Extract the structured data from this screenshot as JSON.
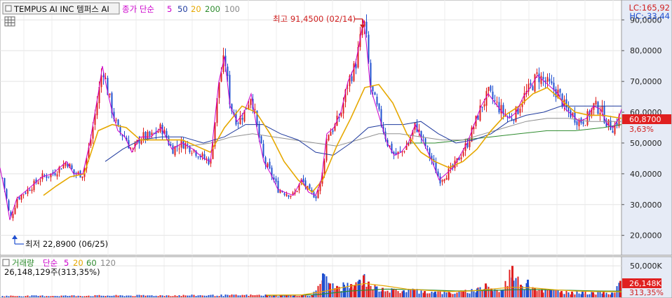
{
  "header": {
    "ticker": "TEMPUS AI INC  템퍼스 AI",
    "ma_prefix": "종가 단순",
    "ma_periods": [
      "5",
      "50",
      "20",
      "200",
      "100"
    ],
    "ma_colors": [
      "#cc00cc",
      "#1f3a9e",
      "#e6a800",
      "#2e8b2e",
      "#888888"
    ],
    "lc": "LC:165,92",
    "hc": "HC:-33,44"
  },
  "annotations": {
    "high": "최고 91,4500 (02/14)",
    "low": "최저 22,8900 (06/25)"
  },
  "price_badge": {
    "price": "60,8700",
    "change": "3,63%"
  },
  "volume_header": {
    "title": "거래량",
    "ma_prefix": "단순",
    "ma_periods": [
      "5",
      "20",
      "60",
      "120"
    ],
    "ma_colors": [
      "#cc00cc",
      "#e6a800",
      "#2e8b2e",
      "#888888"
    ],
    "current": "26,148,129주(313,35%)"
  },
  "volume_badge": {
    "value": "26,148K",
    "pct": "313,35%"
  },
  "colors": {
    "up": "#e02020",
    "down": "#2050d0"
  },
  "chart_data": {
    "type": "candlestick",
    "y_ticks": [
      "90,0000",
      "80,0000",
      "70,0000",
      "60,0000",
      "50,0000",
      "40,0000",
      "30,0000",
      "20,0000"
    ],
    "y_tick_values": [
      90,
      80,
      70,
      60,
      50,
      40,
      30,
      20
    ],
    "ylim": [
      14,
      96
    ],
    "volume_tick": "50,000K",
    "volume_tick_value": 50000,
    "volume_ylim": [
      0,
      58000
    ],
    "close_path": [
      [
        0,
        42
      ],
      [
        8,
        33
      ],
      [
        14,
        25
      ],
      [
        24,
        32
      ],
      [
        40,
        35
      ],
      [
        60,
        39
      ],
      [
        75,
        40
      ],
      [
        85,
        42
      ],
      [
        95,
        44
      ],
      [
        105,
        40
      ],
      [
        118,
        40
      ],
      [
        128,
        50
      ],
      [
        140,
        66
      ],
      [
        146,
        75
      ],
      [
        152,
        68
      ],
      [
        160,
        60
      ],
      [
        168,
        54
      ],
      [
        178,
        52
      ],
      [
        188,
        47
      ],
      [
        200,
        52
      ],
      [
        215,
        52
      ],
      [
        230,
        55
      ],
      [
        245,
        48
      ],
      [
        260,
        50
      ],
      [
        275,
        48
      ],
      [
        290,
        45
      ],
      [
        300,
        44
      ],
      [
        305,
        55
      ],
      [
        312,
        70
      ],
      [
        320,
        78
      ],
      [
        328,
        62
      ],
      [
        338,
        57
      ],
      [
        348,
        60
      ],
      [
        358,
        66
      ],
      [
        366,
        55
      ],
      [
        376,
        44
      ],
      [
        386,
        40
      ],
      [
        396,
        35
      ],
      [
        406,
        34
      ],
      [
        418,
        33
      ],
      [
        430,
        38
      ],
      [
        440,
        34
      ],
      [
        450,
        33
      ],
      [
        458,
        38
      ],
      [
        466,
        53
      ],
      [
        476,
        55
      ],
      [
        486,
        60
      ],
      [
        496,
        70
      ],
      [
        506,
        75
      ],
      [
        512,
        82
      ],
      [
        518,
        90
      ],
      [
        522,
        83
      ],
      [
        528,
        68
      ],
      [
        536,
        62
      ],
      [
        544,
        56
      ],
      [
        552,
        50
      ],
      [
        562,
        46
      ],
      [
        572,
        47
      ],
      [
        582,
        50
      ],
      [
        592,
        56
      ],
      [
        600,
        52
      ],
      [
        608,
        48
      ],
      [
        616,
        44
      ],
      [
        626,
        38
      ],
      [
        636,
        40
      ],
      [
        646,
        42
      ],
      [
        656,
        46
      ],
      [
        666,
        50
      ],
      [
        676,
        56
      ],
      [
        686,
        62
      ],
      [
        696,
        66
      ],
      [
        706,
        63
      ],
      [
        716,
        60
      ],
      [
        726,
        58
      ],
      [
        736,
        60
      ],
      [
        746,
        65
      ],
      [
        756,
        68
      ],
      [
        766,
        72
      ],
      [
        776,
        70
      ],
      [
        786,
        68
      ],
      [
        796,
        66
      ],
      [
        806,
        61
      ],
      [
        816,
        59
      ],
      [
        826,
        57
      ],
      [
        836,
        58
      ],
      [
        846,
        62
      ],
      [
        856,
        61
      ],
      [
        866,
        56
      ],
      [
        874,
        55
      ],
      [
        882,
        58
      ],
      [
        886,
        61
      ]
    ],
    "ma20_path": [
      [
        62,
        33
      ],
      [
        80,
        36
      ],
      [
        100,
        39
      ],
      [
        120,
        40
      ],
      [
        140,
        54
      ],
      [
        160,
        56
      ],
      [
        180,
        55
      ],
      [
        200,
        51
      ],
      [
        220,
        51
      ],
      [
        240,
        51
      ],
      [
        260,
        51
      ],
      [
        280,
        49
      ],
      [
        300,
        47
      ],
      [
        320,
        55
      ],
      [
        345,
        62
      ],
      [
        365,
        60
      ],
      [
        385,
        53
      ],
      [
        405,
        44
      ],
      [
        425,
        38
      ],
      [
        445,
        34
      ],
      [
        460,
        38
      ],
      [
        480,
        49
      ],
      [
        500,
        58
      ],
      [
        520,
        68
      ],
      [
        540,
        69
      ],
      [
        560,
        63
      ],
      [
        580,
        53
      ],
      [
        600,
        47
      ],
      [
        620,
        44
      ],
      [
        640,
        42
      ],
      [
        660,
        44
      ],
      [
        680,
        48
      ],
      [
        700,
        54
      ],
      [
        720,
        59
      ],
      [
        740,
        62
      ],
      [
        760,
        66
      ],
      [
        780,
        68
      ],
      [
        800,
        64
      ],
      [
        820,
        60
      ],
      [
        840,
        59
      ],
      [
        860,
        59
      ],
      [
        886,
        58
      ]
    ],
    "ma50_path": [
      [
        150,
        44
      ],
      [
        175,
        48
      ],
      [
        200,
        51
      ],
      [
        230,
        52
      ],
      [
        260,
        52
      ],
      [
        290,
        50
      ],
      [
        320,
        52
      ],
      [
        350,
        56
      ],
      [
        375,
        56
      ],
      [
        400,
        53
      ],
      [
        425,
        51
      ],
      [
        450,
        47
      ],
      [
        475,
        46
      ],
      [
        500,
        50
      ],
      [
        525,
        55
      ],
      [
        550,
        56
      ],
      [
        575,
        56
      ],
      [
        600,
        57
      ],
      [
        625,
        53
      ],
      [
        650,
        50
      ],
      [
        675,
        51
      ],
      [
        700,
        53
      ],
      [
        725,
        57
      ],
      [
        750,
        59
      ],
      [
        775,
        60
      ],
      [
        800,
        62
      ],
      [
        825,
        62
      ],
      [
        850,
        62
      ],
      [
        886,
        62
      ]
    ],
    "ma100_path": [
      [
        270,
        49
      ],
      [
        300,
        50
      ],
      [
        330,
        52
      ],
      [
        360,
        53
      ],
      [
        390,
        52
      ],
      [
        420,
        51
      ],
      [
        450,
        50
      ],
      [
        480,
        49
      ],
      [
        510,
        51
      ],
      [
        540,
        53
      ],
      [
        570,
        53
      ],
      [
        600,
        52
      ],
      [
        630,
        51
      ],
      [
        660,
        51
      ],
      [
        690,
        53
      ],
      [
        720,
        55
      ],
      [
        750,
        57
      ],
      [
        780,
        58
      ],
      [
        810,
        58
      ],
      [
        840,
        57
      ],
      [
        886,
        57
      ]
    ],
    "ma200_path": [
      [
        580,
        50
      ],
      [
        620,
        50
      ],
      [
        660,
        51
      ],
      [
        700,
        52
      ],
      [
        740,
        53
      ],
      [
        780,
        54
      ],
      [
        820,
        54
      ],
      [
        860,
        55
      ],
      [
        886,
        56
      ]
    ],
    "volume_bars": [
      [
        380,
        4000
      ],
      [
        390,
        3200
      ],
      [
        400,
        2800
      ],
      [
        408,
        3500
      ],
      [
        418,
        2600
      ],
      [
        430,
        4200
      ],
      [
        445,
        3000
      ],
      [
        460,
        38000
      ],
      [
        470,
        22000
      ],
      [
        480,
        18000
      ],
      [
        490,
        20000
      ],
      [
        500,
        21000
      ],
      [
        505,
        19000
      ],
      [
        512,
        28000
      ],
      [
        518,
        35000
      ],
      [
        525,
        25000
      ],
      [
        535,
        17000
      ],
      [
        545,
        15000
      ],
      [
        560,
        12000
      ],
      [
        575,
        11000
      ],
      [
        590,
        13000
      ],
      [
        605,
        10000
      ],
      [
        620,
        9000
      ],
      [
        640,
        8000
      ],
      [
        660,
        9500
      ],
      [
        680,
        14000
      ],
      [
        692,
        22000
      ],
      [
        700,
        14000
      ],
      [
        715,
        11000
      ],
      [
        730,
        50000
      ],
      [
        742,
        20000
      ],
      [
        752,
        28000
      ],
      [
        762,
        15000
      ],
      [
        772,
        13000
      ],
      [
        785,
        12000
      ],
      [
        800,
        10000
      ],
      [
        815,
        9000
      ],
      [
        830,
        9000
      ],
      [
        845,
        8000
      ],
      [
        860,
        8500
      ],
      [
        872,
        7500
      ],
      [
        884,
        26148
      ]
    ],
    "volume_ma20_path": [
      [
        380,
        3500
      ],
      [
        430,
        3800
      ],
      [
        460,
        9000
      ],
      [
        490,
        16000
      ],
      [
        520,
        22000
      ],
      [
        550,
        18000
      ],
      [
        580,
        13000
      ],
      [
        610,
        11000
      ],
      [
        640,
        9000
      ],
      [
        670,
        10000
      ],
      [
        700,
        13000
      ],
      [
        730,
        16000
      ],
      [
        760,
        15000
      ],
      [
        790,
        12000
      ],
      [
        820,
        10000
      ],
      [
        850,
        9000
      ],
      [
        886,
        8800
      ]
    ],
    "volume_ma60_path": [
      [
        380,
        3000
      ],
      [
        450,
        4000
      ],
      [
        500,
        10000
      ],
      [
        550,
        13000
      ],
      [
        600,
        12000
      ],
      [
        650,
        10000
      ],
      [
        700,
        11000
      ],
      [
        750,
        12500
      ],
      [
        800,
        11500
      ],
      [
        850,
        10000
      ],
      [
        886,
        9800
      ]
    ]
  }
}
